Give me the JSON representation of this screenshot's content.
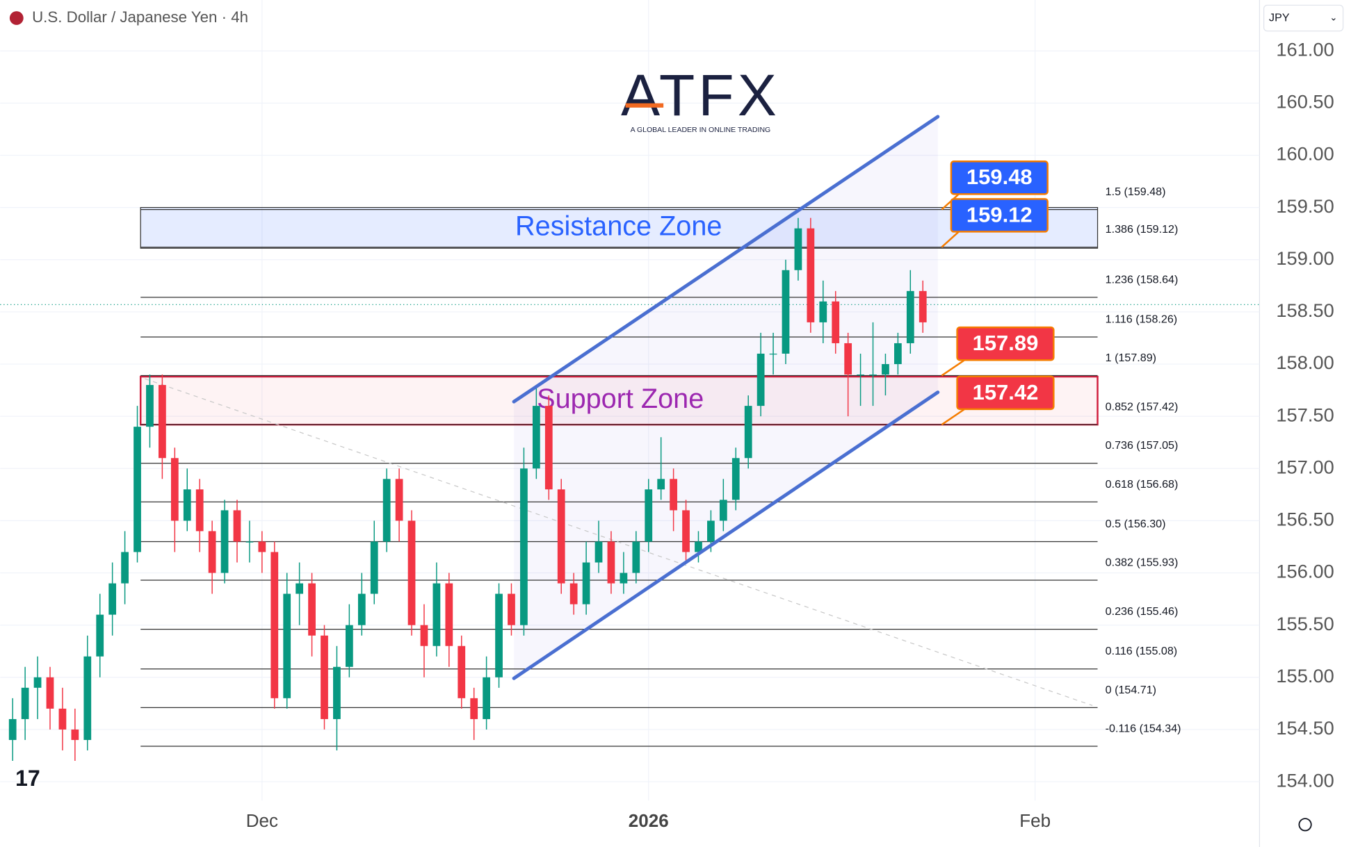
{
  "chart_data": {
    "type": "candlestick",
    "title": "U.S. Dollar / Japanese Yen · 4h",
    "currency": "JPY",
    "logo": "ATFX",
    "logo_tagline": "A GLOBAL LEADER IN ONLINE TRADING",
    "up_color": "#089981",
    "down_color": "#f23645",
    "xlim": [
      -21,
      80
    ],
    "xticks": [
      {
        "value": 0,
        "label": "Dec"
      },
      {
        "value": 31,
        "label": "2026"
      },
      {
        "value": 62,
        "label": "Feb"
      }
    ],
    "ylim": [
      153.82,
      161.24
    ],
    "yticks": [
      {
        "value": 154,
        "label": "154.00"
      },
      {
        "value": 154.5,
        "label": "154.50"
      },
      {
        "value": 155,
        "label": "155.00"
      },
      {
        "value": 155.5,
        "label": "155.50"
      },
      {
        "value": 156,
        "label": "156.00"
      },
      {
        "value": 156.5,
        "label": "156.50"
      },
      {
        "value": 157,
        "label": "157.00"
      },
      {
        "value": 157.5,
        "label": "157.50"
      },
      {
        "value": 158,
        "label": "158.00"
      },
      {
        "value": 158.5,
        "label": "158.50"
      },
      {
        "value": 159,
        "label": "159.00"
      },
      {
        "value": 159.5,
        "label": "159.50"
      },
      {
        "value": 160,
        "label": "160.00"
      },
      {
        "value": 160.5,
        "label": "160.50"
      },
      {
        "value": 161,
        "label": "161.00"
      }
    ],
    "grid": true,
    "x": [
      -20,
      -19,
      -18,
      -17,
      -16,
      -15,
      -14,
      -13,
      -12,
      -11,
      -10,
      -9,
      -8,
      -7,
      -6,
      -5,
      -4,
      -3,
      -2,
      -1,
      0,
      1,
      2,
      3,
      4,
      5,
      6,
      7,
      8,
      9,
      10,
      11,
      12,
      13,
      14,
      15,
      16,
      17,
      18,
      19,
      20,
      21,
      22,
      23,
      24,
      25,
      26,
      27,
      28,
      29,
      30,
      31,
      32,
      33,
      34,
      35,
      36,
      37,
      38,
      39,
      40,
      41,
      42,
      43,
      44,
      45,
      46,
      47,
      48,
      49,
      50,
      51,
      52,
      53
    ],
    "ohlc": [
      [
        154.4,
        154.8,
        154.2,
        154.6
      ],
      [
        154.6,
        155.1,
        154.4,
        154.9
      ],
      [
        154.9,
        155.2,
        154.6,
        155.0
      ],
      [
        155.0,
        155.1,
        154.5,
        154.7
      ],
      [
        154.7,
        154.9,
        154.3,
        154.5
      ],
      [
        154.5,
        154.7,
        154.2,
        154.4
      ],
      [
        154.4,
        155.4,
        154.3,
        155.2
      ],
      [
        155.2,
        155.8,
        155.0,
        155.6
      ],
      [
        155.6,
        156.1,
        155.4,
        155.9
      ],
      [
        155.9,
        156.4,
        155.7,
        156.2
      ],
      [
        156.2,
        157.6,
        156.1,
        157.4
      ],
      [
        157.4,
        157.9,
        157.2,
        157.8
      ],
      [
        157.8,
        157.9,
        156.9,
        157.1
      ],
      [
        157.1,
        157.2,
        156.2,
        156.5
      ],
      [
        156.5,
        157.0,
        156.4,
        156.8
      ],
      [
        156.8,
        156.9,
        156.2,
        156.4
      ],
      [
        156.4,
        156.5,
        155.8,
        156.0
      ],
      [
        156.0,
        156.7,
        155.9,
        156.6
      ],
      [
        156.6,
        156.7,
        156.1,
        156.3
      ],
      [
        156.3,
        156.5,
        156.1,
        156.3
      ],
      [
        156.3,
        156.4,
        156.0,
        156.2
      ],
      [
        156.2,
        156.3,
        154.7,
        154.8
      ],
      [
        154.8,
        156.0,
        154.7,
        155.8
      ],
      [
        155.8,
        156.1,
        155.5,
        155.9
      ],
      [
        155.9,
        156.0,
        155.2,
        155.4
      ],
      [
        155.4,
        155.5,
        154.5,
        154.6
      ],
      [
        154.6,
        155.3,
        154.3,
        155.1
      ],
      [
        155.1,
        155.7,
        155.0,
        155.5
      ],
      [
        155.5,
        156.0,
        155.4,
        155.8
      ],
      [
        155.8,
        156.5,
        155.7,
        156.3
      ],
      [
        156.3,
        157.0,
        156.2,
        156.9
      ],
      [
        156.9,
        157.0,
        156.3,
        156.5
      ],
      [
        156.5,
        156.6,
        155.4,
        155.5
      ],
      [
        155.5,
        155.7,
        155.0,
        155.3
      ],
      [
        155.3,
        156.1,
        155.2,
        155.9
      ],
      [
        155.9,
        156.0,
        155.1,
        155.3
      ],
      [
        155.3,
        155.4,
        154.7,
        154.8
      ],
      [
        154.8,
        154.9,
        154.4,
        154.6
      ],
      [
        154.6,
        155.2,
        154.5,
        155.0
      ],
      [
        155.0,
        155.9,
        154.9,
        155.8
      ],
      [
        155.8,
        155.9,
        155.4,
        155.5
      ],
      [
        155.5,
        157.2,
        155.4,
        157.0
      ],
      [
        157.0,
        157.8,
        156.9,
        157.6
      ],
      [
        157.6,
        157.7,
        156.7,
        156.8
      ],
      [
        156.8,
        156.9,
        155.8,
        155.9
      ],
      [
        155.9,
        156.0,
        155.6,
        155.7
      ],
      [
        155.7,
        156.3,
        155.6,
        156.1
      ],
      [
        156.1,
        156.5,
        156.0,
        156.3
      ],
      [
        156.3,
        156.4,
        155.8,
        155.9
      ],
      [
        155.9,
        156.2,
        155.8,
        156.0
      ],
      [
        156.0,
        156.4,
        155.9,
        156.3
      ],
      [
        156.3,
        156.9,
        156.2,
        156.8
      ],
      [
        156.8,
        157.3,
        156.7,
        156.9
      ],
      [
        156.9,
        157.0,
        156.4,
        156.6
      ],
      [
        156.6,
        156.7,
        156.1,
        156.2
      ],
      [
        156.2,
        156.4,
        156.1,
        156.3
      ],
      [
        156.3,
        156.6,
        156.2,
        156.5
      ],
      [
        156.5,
        156.9,
        156.4,
        156.7
      ],
      [
        156.7,
        157.2,
        156.6,
        157.1
      ],
      [
        157.1,
        157.7,
        157.0,
        157.6
      ],
      [
        157.6,
        158.3,
        157.5,
        158.1
      ],
      [
        158.1,
        158.3,
        157.9,
        158.1
      ],
      [
        158.1,
        159.0,
        158.0,
        158.9
      ],
      [
        158.9,
        159.4,
        158.8,
        159.3
      ],
      [
        159.3,
        159.4,
        158.3,
        158.4
      ],
      [
        158.4,
        158.8,
        158.2,
        158.6
      ],
      [
        158.6,
        158.7,
        158.1,
        158.2
      ],
      [
        158.2,
        158.3,
        157.5,
        157.9
      ],
      [
        157.9,
        158.1,
        157.6,
        157.9
      ],
      [
        157.9,
        158.4,
        157.6,
        157.9
      ],
      [
        157.9,
        158.1,
        157.7,
        158.0
      ],
      [
        158.0,
        158.3,
        157.9,
        158.2
      ],
      [
        158.2,
        158.9,
        158.1,
        158.7
      ],
      [
        158.7,
        158.8,
        158.3,
        158.4
      ]
    ],
    "fib_levels": [
      {
        "label": "1.5 (159.48)",
        "value": 159.48
      },
      {
        "label": "1.386 (159.12)",
        "value": 159.12
      },
      {
        "label": "1.236 (158.64)",
        "value": 158.64
      },
      {
        "label": "1.116 (158.26)",
        "value": 158.26
      },
      {
        "label": "1 (157.89)",
        "value": 157.89
      },
      {
        "label": "0.852 (157.42)",
        "value": 157.42
      },
      {
        "label": "0.736 (157.05)",
        "value": 157.05
      },
      {
        "label": "0.618 (156.68)",
        "value": 156.68
      },
      {
        "label": "0.5 (156.30)",
        "value": 156.3
      },
      {
        "label": "0.382 (155.93)",
        "value": 155.93
      },
      {
        "label": "0.236 (155.46)",
        "value": 155.46
      },
      {
        "label": "0.116 (155.08)",
        "value": 155.08
      },
      {
        "label": "0 (154.71)",
        "value": 154.71
      },
      {
        "label": "-0.116 (154.34)",
        "value": 154.34
      }
    ],
    "zones": [
      {
        "label": "Resistance Zone",
        "low": 159.11,
        "high": 159.5,
        "color": "#2962ff"
      },
      {
        "label": "Support Zone",
        "low": 157.42,
        "high": 157.88,
        "color": "#9c27b0"
      }
    ],
    "price_tags": [
      {
        "value": 159.48,
        "color": "#2962ff"
      },
      {
        "value": 159.12,
        "color": "#2962ff"
      },
      {
        "value": 157.89,
        "color": "#f23645"
      },
      {
        "value": 157.42,
        "color": "#f23645"
      }
    ],
    "channel": {
      "color": "#4a6fd1",
      "upper": [
        [
          20.2,
          157.64
        ],
        [
          54.2,
          160.37
        ]
      ],
      "lower": [
        [
          20.2,
          154.99
        ],
        [
          54.2,
          157.73
        ]
      ]
    },
    "trendline": [
      [
        -9.4,
        157.86
      ],
      [
        66.6,
        154.73
      ]
    ],
    "last_price": 158.57
  }
}
